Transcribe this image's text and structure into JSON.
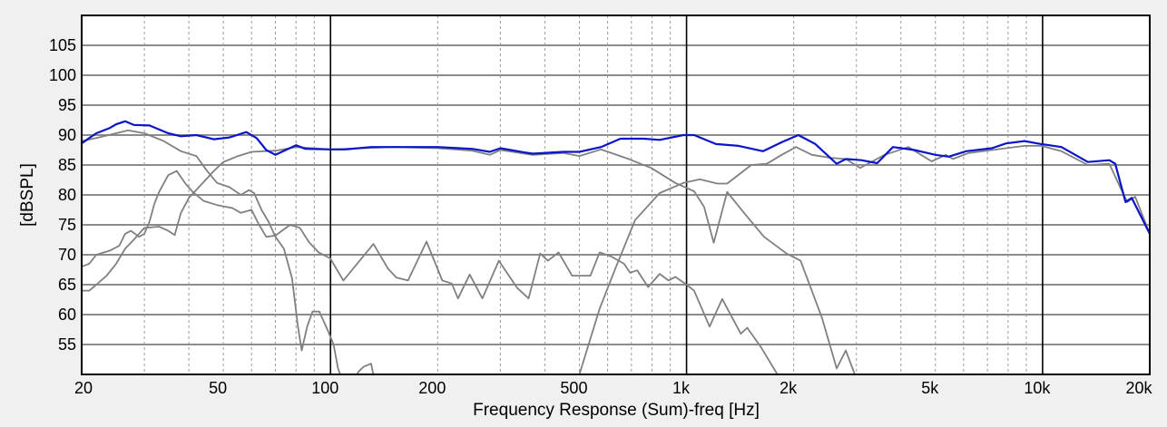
{
  "chart_data": {
    "type": "line",
    "title": "",
    "xlabel": "Frequency Response (Sum)-freq [Hz]",
    "ylabel": "[dBSPL]",
    "xscale": "log",
    "xlim": [
      20,
      20000
    ],
    "ylim": [
      50,
      110
    ],
    "grid": true,
    "x_ticks": [
      {
        "value": 20,
        "label": "20"
      },
      {
        "value": 50,
        "label": "50"
      },
      {
        "value": 100,
        "label": "100"
      },
      {
        "value": 200,
        "label": "200"
      },
      {
        "value": 500,
        "label": "500"
      },
      {
        "value": 1000,
        "label": "1k"
      },
      {
        "value": 2000,
        "label": "2k"
      },
      {
        "value": 5000,
        "label": "5k"
      },
      {
        "value": 10000,
        "label": "10k"
      },
      {
        "value": 20000,
        "label": "20k"
      }
    ],
    "y_ticks": [
      {
        "value": 55,
        "label": "55"
      },
      {
        "value": 60,
        "label": "60"
      },
      {
        "value": 65,
        "label": "65"
      },
      {
        "value": 70,
        "label": "70"
      },
      {
        "value": 75,
        "label": "75"
      },
      {
        "value": 80,
        "label": "80"
      },
      {
        "value": 85,
        "label": "85"
      },
      {
        "value": 90,
        "label": "90"
      },
      {
        "value": 95,
        "label": "95"
      },
      {
        "value": 100,
        "label": "100"
      },
      {
        "value": 105,
        "label": "105"
      }
    ],
    "series": [
      {
        "color": "#808080",
        "points": [
          [
            20,
            89
          ],
          [
            22,
            89.5
          ],
          [
            25,
            90.3
          ],
          [
            27,
            90.8
          ],
          [
            30,
            90.3
          ],
          [
            34,
            89
          ],
          [
            38,
            87.3
          ],
          [
            42,
            86.5
          ],
          [
            45,
            84
          ],
          [
            48,
            82
          ],
          [
            52,
            81.3
          ],
          [
            56,
            80
          ],
          [
            59,
            80.8
          ],
          [
            61,
            80.3
          ],
          [
            64,
            77.5
          ],
          [
            67,
            75.5
          ],
          [
            70,
            73
          ],
          [
            74,
            71
          ],
          [
            78,
            66
          ],
          [
            81,
            58
          ],
          [
            83,
            54
          ],
          [
            86,
            58
          ],
          [
            89,
            60.5
          ],
          [
            93,
            60.5
          ],
          [
            98,
            57.5
          ],
          [
            102,
            55
          ],
          [
            105,
            51
          ],
          [
            108,
            49
          ],
          [
            116,
            49
          ],
          [
            120,
            50.5
          ],
          [
            124,
            51.3
          ],
          [
            130,
            51.8
          ],
          [
            133,
            49
          ]
        ]
      },
      {
        "color": "#808080",
        "points": [
          [
            20,
            68
          ],
          [
            21,
            68.5
          ],
          [
            22,
            70
          ],
          [
            24,
            70.7
          ],
          [
            25.5,
            71.5
          ],
          [
            26.5,
            73.5
          ],
          [
            27.5,
            74
          ],
          [
            29,
            73
          ],
          [
            30,
            73.5
          ],
          [
            31,
            75.5
          ],
          [
            32,
            78.5
          ],
          [
            33,
            80.5
          ],
          [
            35,
            83.3
          ],
          [
            37,
            84
          ],
          [
            39,
            82
          ],
          [
            41,
            80.5
          ],
          [
            44,
            79
          ],
          [
            48,
            78.3
          ],
          [
            53,
            77.8
          ],
          [
            56,
            77
          ],
          [
            60,
            77.5
          ],
          [
            63,
            75
          ],
          [
            66,
            73
          ],
          [
            70,
            73.2
          ],
          [
            73,
            74
          ],
          [
            77,
            75
          ],
          [
            82,
            74.5
          ],
          [
            87,
            72.1
          ],
          [
            92.6,
            70.4
          ],
          [
            99.8,
            69.4
          ],
          [
            108.7,
            65.7
          ],
          [
            132,
            71.8
          ],
          [
            145,
            67.7
          ],
          [
            153,
            66.2
          ],
          [
            165,
            65.7
          ],
          [
            186,
            72.2
          ],
          [
            206,
            65.7
          ],
          [
            219,
            65.2
          ],
          [
            228,
            62.7
          ],
          [
            246,
            66.7
          ],
          [
            267,
            62.7
          ],
          [
            297,
            69
          ],
          [
            334,
            64.5
          ],
          [
            360,
            62.7
          ],
          [
            388,
            70.2
          ],
          [
            408,
            69
          ],
          [
            437,
            70.4
          ],
          [
            477,
            66.5
          ],
          [
            537,
            66.5
          ],
          [
            570,
            70.4
          ],
          [
            615,
            69.7
          ],
          [
            667,
            68.5
          ],
          [
            694,
            67
          ],
          [
            727,
            67.4
          ],
          [
            780,
            64.6
          ],
          [
            840,
            66.8
          ],
          [
            890,
            65.7
          ],
          [
            930,
            66.3
          ],
          [
            1000,
            65
          ],
          [
            1050,
            64
          ],
          [
            1160,
            58
          ],
          [
            1260,
            62.6
          ],
          [
            1420,
            56.8
          ],
          [
            1480,
            57.8
          ],
          [
            1620,
            54.5
          ],
          [
            1800,
            50
          ],
          [
            1850,
            49
          ]
        ]
      },
      {
        "color": "#808080",
        "points": [
          [
            20,
            64
          ],
          [
            21,
            64
          ],
          [
            22,
            65
          ],
          [
            23.5,
            66.5
          ],
          [
            25,
            68.5
          ],
          [
            26.5,
            71
          ],
          [
            28,
            72.5
          ],
          [
            30,
            74.5
          ],
          [
            33,
            74.7
          ],
          [
            35,
            74
          ],
          [
            36.5,
            73.3
          ],
          [
            38,
            77
          ],
          [
            40,
            79.5
          ],
          [
            43,
            81.5
          ],
          [
            47,
            84
          ],
          [
            50,
            85.5
          ],
          [
            55,
            86.5
          ],
          [
            60,
            87.2
          ],
          [
            70,
            87.4
          ],
          [
            80,
            88
          ],
          [
            100,
            87.6
          ],
          [
            150,
            88
          ],
          [
            200,
            87.8
          ],
          [
            250,
            87.4
          ],
          [
            280,
            86.7
          ],
          [
            300,
            87.5
          ],
          [
            370,
            86.7
          ],
          [
            450,
            87
          ],
          [
            500,
            86.5
          ],
          [
            575,
            87.6
          ],
          [
            688,
            86
          ],
          [
            796,
            84.5
          ],
          [
            930,
            82
          ],
          [
            1050,
            80.6
          ],
          [
            1120,
            78
          ],
          [
            1192,
            72
          ],
          [
            1300,
            80.5
          ],
          [
            1450,
            77
          ],
          [
            1650,
            73
          ],
          [
            1910,
            70.2
          ],
          [
            2090,
            69
          ],
          [
            2400,
            59.5
          ],
          [
            2640,
            51
          ],
          [
            2800,
            54
          ],
          [
            2970,
            50
          ],
          [
            3050,
            48
          ]
        ]
      },
      {
        "color": "#808080",
        "points": [
          [
            490,
            48
          ],
          [
            500,
            50
          ],
          [
            570,
            61
          ],
          [
            634,
            68
          ],
          [
            717,
            75.8
          ],
          [
            840,
            80.3
          ],
          [
            980,
            82
          ],
          [
            1090,
            82.6
          ],
          [
            1220,
            81.9
          ],
          [
            1300,
            81.9
          ],
          [
            1520,
            85
          ],
          [
            1680,
            85.2
          ],
          [
            1850,
            86.7
          ],
          [
            2030,
            88
          ],
          [
            2250,
            86.7
          ],
          [
            2540,
            86.2
          ],
          [
            2800,
            86
          ],
          [
            3070,
            84.5
          ],
          [
            3600,
            86.7
          ],
          [
            4200,
            88
          ],
          [
            4880,
            85.6
          ],
          [
            5350,
            86.7
          ],
          [
            5600,
            86
          ],
          [
            6200,
            87
          ],
          [
            7200,
            87.5
          ],
          [
            8900,
            88.2
          ],
          [
            9900,
            88.2
          ],
          [
            11300,
            87.3
          ],
          [
            13400,
            85
          ],
          [
            15400,
            85.2
          ],
          [
            16900,
            80
          ],
          [
            17300,
            78.8
          ],
          [
            18200,
            79.7
          ],
          [
            20000,
            73.5
          ]
        ]
      },
      {
        "color": "#0a14c8",
        "points": [
          [
            20,
            88.6
          ],
          [
            21,
            89.5
          ],
          [
            22,
            90.3
          ],
          [
            24,
            91.2
          ],
          [
            25,
            91.8
          ],
          [
            26.5,
            92.3
          ],
          [
            28,
            91.7
          ],
          [
            31,
            91.6
          ],
          [
            35,
            90.3
          ],
          [
            38,
            89.8
          ],
          [
            42,
            90
          ],
          [
            47,
            89.3
          ],
          [
            52,
            89.6
          ],
          [
            58,
            90.5
          ],
          [
            62,
            89.5
          ],
          [
            66,
            87.5
          ],
          [
            70,
            86.7
          ],
          [
            76,
            87.7
          ],
          [
            80,
            88.3
          ],
          [
            85,
            87.7
          ],
          [
            100,
            87.6
          ],
          [
            110,
            87.6
          ],
          [
            130,
            88
          ],
          [
            150,
            88
          ],
          [
            200,
            88
          ],
          [
            250,
            87.7
          ],
          [
            280,
            87.2
          ],
          [
            300,
            87.8
          ],
          [
            350,
            87.1
          ],
          [
            370,
            86.9
          ],
          [
            450,
            87.2
          ],
          [
            500,
            87.2
          ],
          [
            575,
            88
          ],
          [
            652,
            89.4
          ],
          [
            760,
            89.4
          ],
          [
            840,
            89.2
          ],
          [
            980,
            90
          ],
          [
            1050,
            90
          ],
          [
            1210,
            88.5
          ],
          [
            1400,
            88.2
          ],
          [
            1640,
            87.3
          ],
          [
            1850,
            88.8
          ],
          [
            2060,
            90
          ],
          [
            2300,
            88.5
          ],
          [
            2640,
            85.2
          ],
          [
            2800,
            86
          ],
          [
            3100,
            85.8
          ],
          [
            3430,
            85.3
          ],
          [
            3800,
            88
          ],
          [
            4370,
            87.5
          ],
          [
            5000,
            86.7
          ],
          [
            5450,
            86.4
          ],
          [
            6100,
            87.3
          ],
          [
            7200,
            87.8
          ],
          [
            7900,
            88.6
          ],
          [
            8900,
            89
          ],
          [
            9900,
            88.5
          ],
          [
            11300,
            88
          ],
          [
            13400,
            85.5
          ],
          [
            15400,
            85.8
          ],
          [
            16000,
            85.2
          ],
          [
            17100,
            78.8
          ],
          [
            17800,
            79.5
          ],
          [
            20000,
            73.5
          ]
        ]
      }
    ]
  }
}
